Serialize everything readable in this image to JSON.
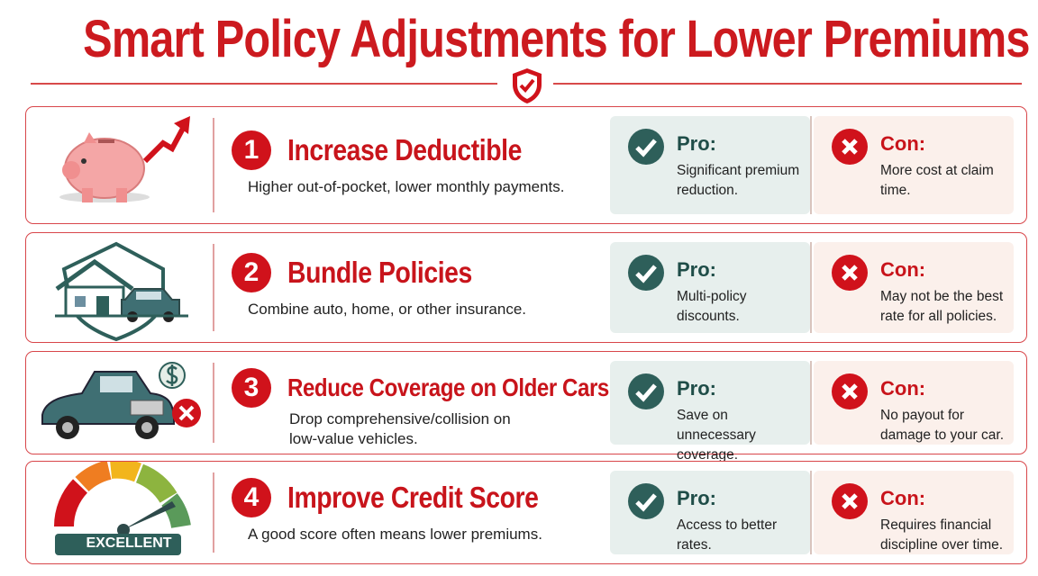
{
  "header": {
    "title": "Smart Policy Adjustments for Lower Premiums"
  },
  "items": [
    {
      "number": 1,
      "title": "Increase Deductible",
      "description": "Higher out-of-pocket, lower monthly payments.",
      "pro_label": "Pro:",
      "pro": "Significant premium reduction.",
      "con_label": "Con:",
      "con": "More cost at claim time."
    },
    {
      "number": 2,
      "title": "Bundle Policies",
      "description": "Combine auto, home, or other insurance.",
      "pro_label": "Pro:",
      "pro": "Multi-policy discounts.",
      "con_label": "Con:",
      "con": "May not be the best rate for all policies."
    },
    {
      "number": 3,
      "title": "Reduce Coverage on Older Cars",
      "description": "Drop comprehensive/collision on low-value vehicles.",
      "pro_label": "Pro:",
      "pro": "Save on unnecessary coverage.",
      "con_label": "Con:",
      "con": "No payout for damage to your car."
    },
    {
      "number": 4,
      "title": "Improve Credit Score",
      "description": "A good score often means lower premiums.",
      "pro_label": "Pro:",
      "pro": "Access to better rates.",
      "con_label": "Con:",
      "con": "Requires financial discipline over time.",
      "icon_label": "EXCELLENT"
    }
  ]
}
